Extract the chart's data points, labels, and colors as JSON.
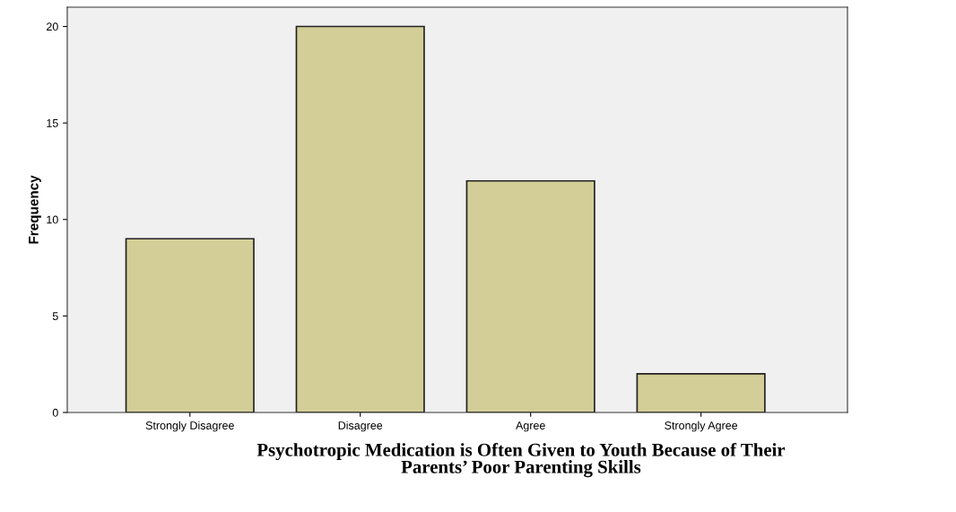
{
  "chart_data": {
    "type": "bar",
    "title": "Psychotropic Medication is Often Given to Youth Because of Their\nParents’ Poor Parenting Skills",
    "ylabel": "Frequency",
    "categories": [
      "Strongly Disagree",
      "Disagree",
      "Agree",
      "Strongly Agree"
    ],
    "values": [
      9,
      20,
      12,
      2
    ],
    "color": "#d3ce97",
    "ylim": [
      0,
      21
    ],
    "yticks": [
      0,
      5,
      10,
      15,
      20
    ],
    "grid": false
  }
}
